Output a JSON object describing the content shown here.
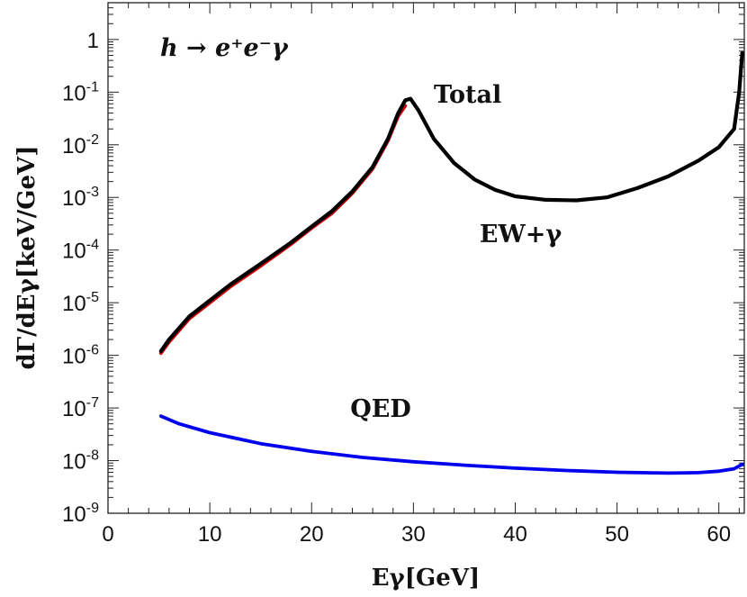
{
  "chart_data": {
    "type": "line",
    "title": "",
    "process_label": "h → e⁺e⁻γ",
    "xlabel": "Eγ[GeV]",
    "ylabel": "dΓ/dEγ[keV/GeV]",
    "xlim": [
      0,
      62.5
    ],
    "ylim": [
      1e-09,
      5
    ],
    "yscale": "log",
    "grid": false,
    "x_ticks": [
      0,
      10,
      20,
      30,
      40,
      50,
      60
    ],
    "x_tick_labels": [
      "0",
      "10",
      "20",
      "30",
      "40",
      "50",
      "60"
    ],
    "y_ticks": [
      1e-09,
      1e-08,
      1e-07,
      1e-06,
      1e-05,
      0.0001,
      0.001,
      0.01,
      0.1,
      1
    ],
    "y_tick_labels": [
      {
        "base": "10",
        "exp": "-9"
      },
      {
        "base": "10",
        "exp": "-8"
      },
      {
        "base": "10",
        "exp": "-7"
      },
      {
        "base": "10",
        "exp": "-6"
      },
      {
        "base": "10",
        "exp": "-5"
      },
      {
        "base": "10",
        "exp": "-4"
      },
      {
        "base": "10",
        "exp": "-3"
      },
      {
        "base": "10",
        "exp": "-2"
      },
      {
        "base": "10",
        "exp": "-1"
      },
      {
        "base": "1",
        "exp": ""
      }
    ],
    "series": [
      {
        "name": "EW+γ",
        "color": "#cc0000",
        "x": [
          5.2,
          6,
          8,
          10,
          12,
          15,
          18,
          20,
          22,
          24,
          26,
          27.5,
          28.5,
          29.2
        ],
        "y": [
          1.1e-06,
          1.8e-06,
          5e-06,
          1e-05,
          2e-05,
          5e-05,
          0.00013,
          0.00026,
          0.0005,
          0.0012,
          0.0035,
          0.012,
          0.035,
          0.055
        ]
      },
      {
        "name": "Total",
        "color": "#000000",
        "x": [
          5.2,
          6,
          8,
          10,
          12,
          15,
          18,
          20,
          22,
          24,
          26,
          27.5,
          28.5,
          29.2,
          29.7,
          30.5,
          32,
          34,
          36,
          38,
          40,
          43,
          46,
          49,
          52,
          55,
          58,
          60,
          61.5,
          62,
          62.3
        ],
        "y": [
          1.2e-06,
          2e-06,
          5.5e-06,
          1.1e-05,
          2.2e-05,
          5.5e-05,
          0.00014,
          0.00028,
          0.00055,
          0.0013,
          0.0038,
          0.013,
          0.04,
          0.07,
          0.075,
          0.045,
          0.013,
          0.0045,
          0.0022,
          0.0014,
          0.00105,
          0.0009,
          0.00088,
          0.001,
          0.0015,
          0.0025,
          0.005,
          0.009,
          0.02,
          0.1,
          0.55
        ]
      },
      {
        "name": "QED",
        "color": "#0000ee",
        "x": [
          5.2,
          7,
          10,
          15,
          20,
          25,
          30,
          35,
          40,
          45,
          50,
          55,
          58,
          60,
          61.5,
          62.3
        ],
        "y": [
          7e-08,
          5e-08,
          3.4e-08,
          2.1e-08,
          1.5e-08,
          1.15e-08,
          9.5e-09,
          8.2e-09,
          7.2e-09,
          6.5e-09,
          6e-09,
          5.8e-09,
          5.9e-09,
          6.3e-09,
          7e-09,
          8.5e-09
        ]
      }
    ],
    "annotations": [
      {
        "text": "Total",
        "x": 32.0,
        "y": 0.063
      },
      {
        "text": "EW+γ",
        "x": 36.5,
        "y": 0.00014
      },
      {
        "text": "QED",
        "x": 23.8,
        "y": 6.8e-08
      }
    ]
  }
}
